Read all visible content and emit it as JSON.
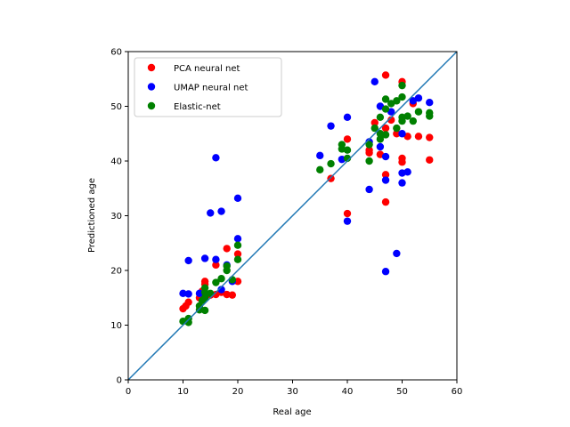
{
  "chart_data": {
    "type": "scatter",
    "title": "",
    "xlabel": "Real age",
    "ylabel": "Predictioned age",
    "xlim": [
      0,
      60
    ],
    "ylim": [
      0,
      60
    ],
    "xticks": [
      "0",
      "10",
      "20",
      "30",
      "40",
      "50",
      "60"
    ],
    "yticks": [
      "0",
      "10",
      "20",
      "30",
      "40",
      "50",
      "60"
    ],
    "grid": false,
    "legend_position": "top-left",
    "reference_line": {
      "x": [
        0,
        60
      ],
      "y": [
        0,
        60
      ],
      "color": "#1f77b4"
    },
    "series": [
      {
        "name": "PCA neural net",
        "color": "#ff0000",
        "points": [
          [
            10,
            13.0
          ],
          [
            10.5,
            13.5
          ],
          [
            11,
            14.2
          ],
          [
            13,
            15.0
          ],
          [
            13.5,
            16.2
          ],
          [
            14,
            17.5
          ],
          [
            14,
            18.0
          ],
          [
            15,
            15.5
          ],
          [
            16,
            15.6
          ],
          [
            16,
            21.0
          ],
          [
            17,
            16.0
          ],
          [
            18,
            24.0
          ],
          [
            18,
            15.6
          ],
          [
            19,
            15.5
          ],
          [
            20,
            18.0
          ],
          [
            20,
            23.0
          ],
          [
            37,
            36.8
          ],
          [
            40,
            30.4
          ],
          [
            40,
            44.0
          ],
          [
            44,
            41.5
          ],
          [
            44,
            42.0
          ],
          [
            45,
            47.0
          ],
          [
            46,
            41.2
          ],
          [
            47,
            32.5
          ],
          [
            47,
            37.5
          ],
          [
            47,
            55.7
          ],
          [
            47,
            46.0
          ],
          [
            48,
            47.5
          ],
          [
            49,
            45.0
          ],
          [
            50,
            54.5
          ],
          [
            50,
            40.5
          ],
          [
            50,
            39.8
          ],
          [
            51,
            44.5
          ],
          [
            52,
            50.5
          ],
          [
            53,
            44.5
          ],
          [
            55,
            44.3
          ],
          [
            55,
            40.2
          ]
        ]
      },
      {
        "name": "UMAP neural net",
        "color": "#0000ff",
        "points": [
          [
            10,
            15.8
          ],
          [
            11,
            15.7
          ],
          [
            11,
            21.8
          ],
          [
            13,
            15.8
          ],
          [
            14,
            22.2
          ],
          [
            15,
            30.5
          ],
          [
            16,
            40.6
          ],
          [
            16,
            22.0
          ],
          [
            17,
            30.8
          ],
          [
            17,
            16.5
          ],
          [
            18,
            21.0
          ],
          [
            19,
            18.0
          ],
          [
            20,
            33.2
          ],
          [
            20,
            25.8
          ],
          [
            35,
            41.0
          ],
          [
            37,
            46.4
          ],
          [
            39,
            40.3
          ],
          [
            40,
            48.0
          ],
          [
            40,
            29.0
          ],
          [
            44,
            34.8
          ],
          [
            44,
            43.5
          ],
          [
            45,
            54.5
          ],
          [
            46,
            50.0
          ],
          [
            46,
            42.6
          ],
          [
            47,
            36.5
          ],
          [
            47,
            40.8
          ],
          [
            47,
            19.8
          ],
          [
            48,
            49.0
          ],
          [
            49,
            23.1
          ],
          [
            50,
            45.0
          ],
          [
            50,
            37.8
          ],
          [
            50,
            36.0
          ],
          [
            51,
            38.0
          ],
          [
            52,
            51.0
          ],
          [
            53,
            51.5
          ],
          [
            55,
            50.7
          ]
        ]
      },
      {
        "name": "Elastic-net",
        "color": "#008000",
        "points": [
          [
            10,
            10.7
          ],
          [
            11,
            10.5
          ],
          [
            11,
            11.2
          ],
          [
            13,
            12.8
          ],
          [
            13,
            13.5
          ],
          [
            13.5,
            14.5
          ],
          [
            14,
            12.7
          ],
          [
            14,
            15.0
          ],
          [
            14,
            16.0
          ],
          [
            14,
            16.8
          ],
          [
            15,
            15.8
          ],
          [
            16,
            17.8
          ],
          [
            17,
            18.5
          ],
          [
            18,
            20.0
          ],
          [
            18,
            20.8
          ],
          [
            19,
            18.3
          ],
          [
            20,
            22.0
          ],
          [
            20,
            24.6
          ],
          [
            35,
            38.4
          ],
          [
            37,
            39.5
          ],
          [
            39,
            43.0
          ],
          [
            39,
            42.2
          ],
          [
            40,
            42.0
          ],
          [
            40,
            40.5
          ],
          [
            44,
            40.0
          ],
          [
            44,
            43.0
          ],
          [
            45,
            46.0
          ],
          [
            46,
            44.0
          ],
          [
            46,
            45.0
          ],
          [
            46,
            48.0
          ],
          [
            47,
            44.8
          ],
          [
            47,
            51.3
          ],
          [
            47,
            49.5
          ],
          [
            48,
            50.5
          ],
          [
            49,
            51.0
          ],
          [
            49,
            46.0
          ],
          [
            50,
            51.7
          ],
          [
            50,
            53.8
          ],
          [
            50,
            47.3
          ],
          [
            50,
            48.0
          ],
          [
            51,
            48.2
          ],
          [
            52,
            47.3
          ],
          [
            53,
            49.0
          ],
          [
            55,
            48.2
          ],
          [
            55,
            48.8
          ]
        ]
      }
    ]
  }
}
